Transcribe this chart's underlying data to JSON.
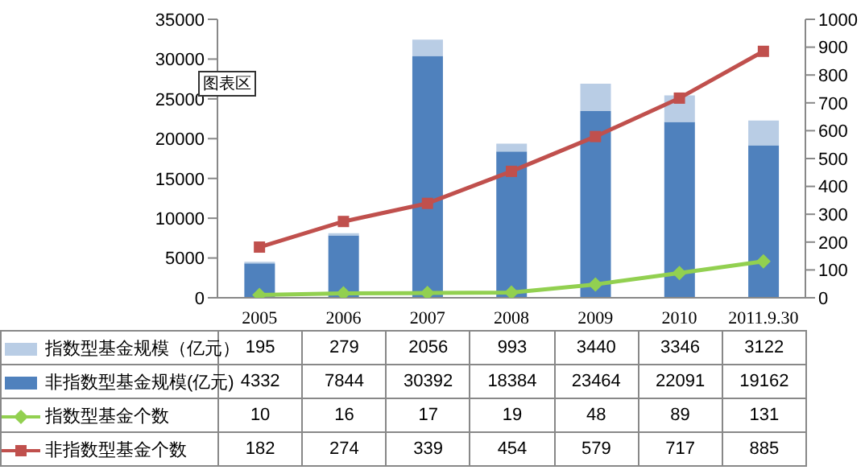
{
  "chart_data": {
    "type": "bar",
    "stacked": true,
    "categories": [
      "2005",
      "2006",
      "2007",
      "2008",
      "2009",
      "2010",
      "2011.9.30"
    ],
    "series": [
      {
        "name": "非指数型基金规模(亿元)",
        "color": "#4f81bd",
        "values": [
          4332,
          7844,
          30392,
          18384,
          23464,
          22091,
          19162
        ]
      },
      {
        "name": "指数型基金规模（亿元）",
        "color": "#b9cde5",
        "values": [
          195,
          279,
          2056,
          993,
          3440,
          3346,
          3122
        ]
      },
      {
        "name": "指数型基金个数",
        "type": "line",
        "axis": "y2",
        "color": "#92d050",
        "marker": "diamond",
        "values": [
          10,
          16,
          17,
          19,
          48,
          89,
          131
        ]
      },
      {
        "name": "非指数型基金个数",
        "type": "line",
        "axis": "y2",
        "color": "#c0504d",
        "marker": "square",
        "values": [
          182,
          274,
          339,
          454,
          579,
          717,
          885
        ]
      }
    ],
    "ylim": [
      0,
      35000
    ],
    "yticks": [
      0,
      5000,
      10000,
      15000,
      20000,
      25000,
      30000,
      35000
    ],
    "y2lim": [
      0,
      1000
    ],
    "y2ticks": [
      0,
      100,
      200,
      300,
      400,
      500,
      600,
      700,
      800,
      900,
      1000
    ],
    "grid": false,
    "legend": "bottom",
    "data_labels": true,
    "annotations": [
      "图表区"
    ]
  }
}
